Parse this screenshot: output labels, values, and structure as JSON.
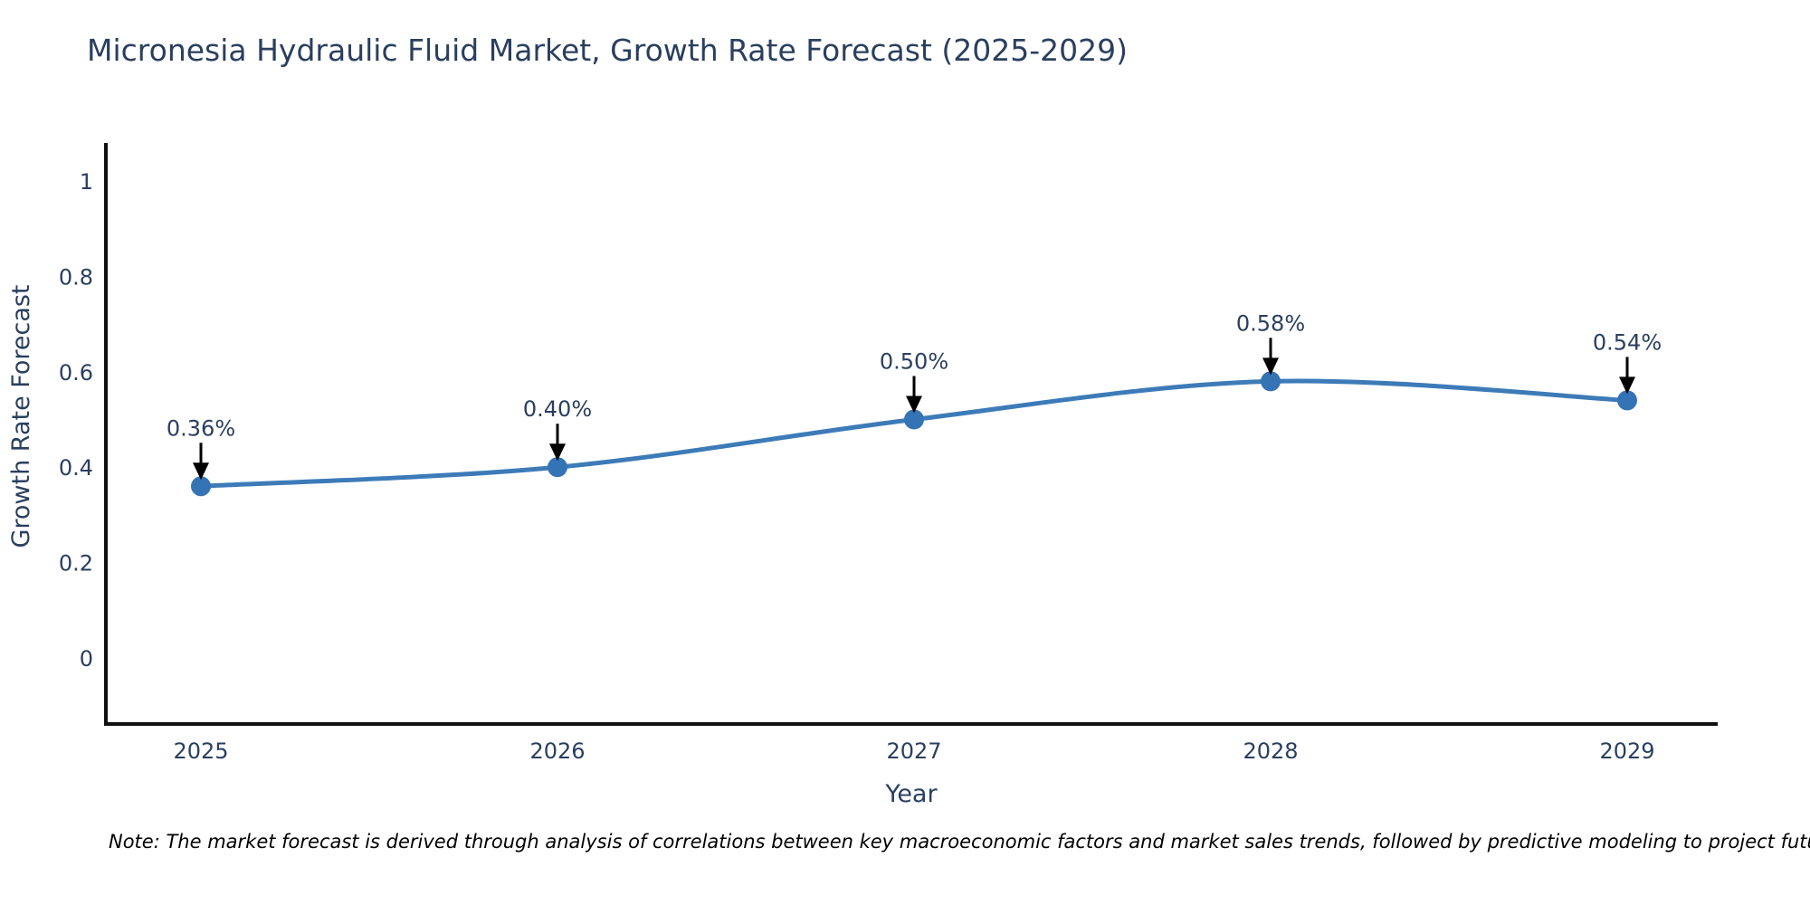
{
  "title": "Micronesia Hydraulic Fluid Market, Growth Rate Forecast (2025-2029)",
  "note": "Note: The market forecast is derived through analysis of correlations between key macroeconomic factors and market sales trends, followed by predictive modeling to project future sales",
  "chart_data": {
    "type": "line",
    "curve": "spline",
    "title": "Micronesia Hydraulic Fluid Market, Growth Rate Forecast (2025-2029)",
    "xlabel": "Year",
    "ylabel": "Growth Rate Forecast",
    "x": [
      2025,
      2026,
      2027,
      2028,
      2029
    ],
    "x_labels": [
      "2025",
      "2026",
      "2027",
      "2028",
      "2029"
    ],
    "series": [
      {
        "name": "Growth Rate Forecast",
        "values": [
          0.36,
          0.4,
          0.5,
          0.58,
          0.54
        ],
        "point_labels": [
          "0.36%",
          "0.40%",
          "0.50%",
          "0.58%",
          "0.54%"
        ]
      }
    ],
    "ytick_values": [
      0,
      0.2,
      0.4,
      0.6,
      0.8,
      1
    ],
    "ytick_labels": [
      "0",
      "0.2",
      "0.4",
      "0.6",
      "0.8",
      "1"
    ],
    "ylim": [
      -0.14,
      1.08
    ],
    "grid": false,
    "legend": false,
    "annotations_have_arrows": true,
    "marker_style": "circle",
    "colors": {
      "line": "#3d7bb8",
      "marker": "#3474b4",
      "axis": "#111111",
      "text": "#2a3f5f",
      "arrow": "#000000",
      "note_text": "#000000",
      "background": "#ffffff"
    }
  }
}
